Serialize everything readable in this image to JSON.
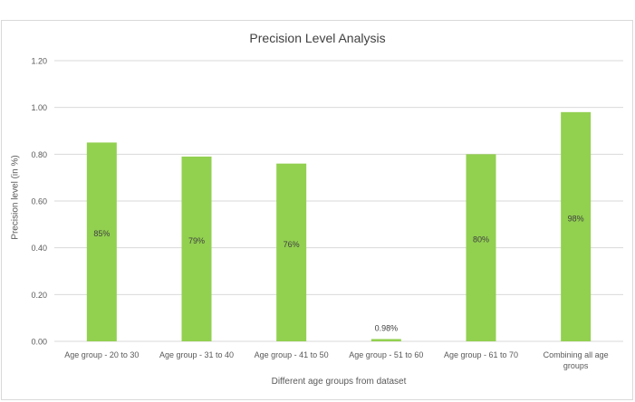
{
  "chart_data": {
    "type": "bar",
    "title": "Precision Level Analysis",
    "xlabel": "Different age groups from dataset",
    "ylabel": "Precision level (in %)",
    "categories": [
      [
        "Age group - 20 to 30"
      ],
      [
        "Age group - 31 to 40"
      ],
      [
        "Age group - 41 to 50"
      ],
      [
        "Age group - 51 to 60"
      ],
      [
        "Age group - 61 to 70"
      ],
      [
        "Combining all age",
        "groups"
      ]
    ],
    "values": [
      0.85,
      0.79,
      0.76,
      0.0098,
      0.8,
      0.98
    ],
    "data_labels": [
      "85%",
      "79%",
      "76%",
      "0.98%",
      "80%",
      "98%"
    ],
    "yticks": [
      "0.00",
      "0.20",
      "0.40",
      "0.60",
      "0.80",
      "1.00",
      "1.20"
    ],
    "ylim": [
      0,
      1.2
    ],
    "grid": true,
    "legend": "none",
    "bar_color": "#92d050",
    "grid_color": "#d9d9d9"
  }
}
